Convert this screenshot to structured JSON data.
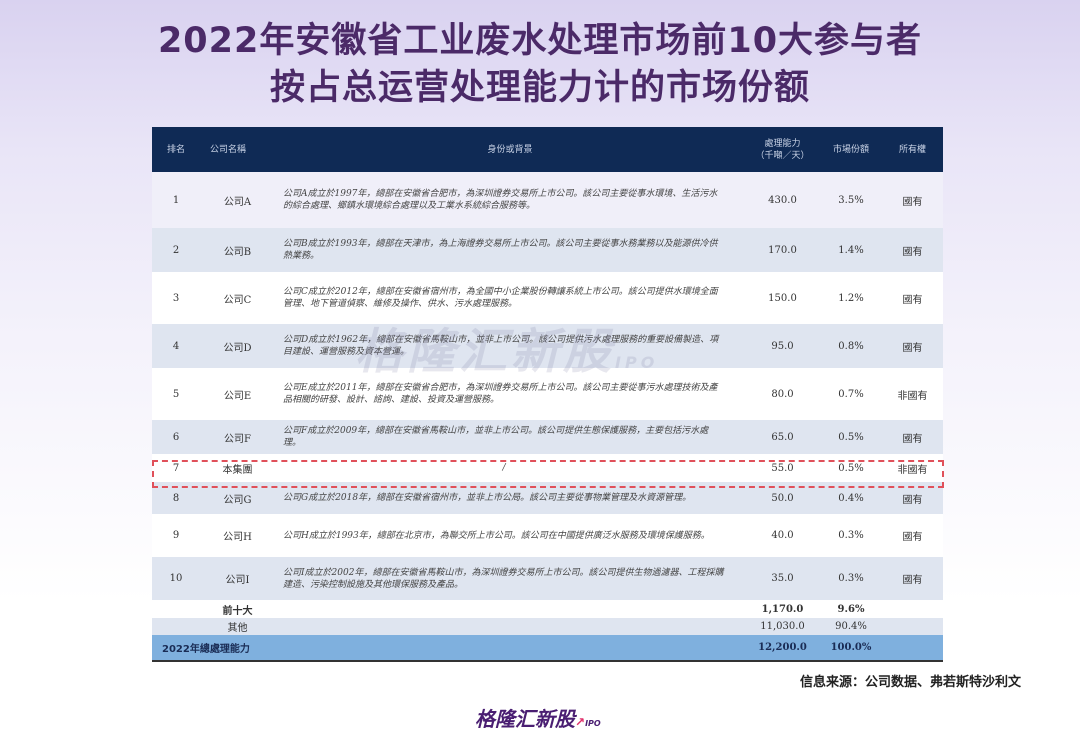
{
  "title": {
    "line1": "2022年安徽省工业废水处理市场前10大参与者",
    "line2": "按占总运营处理能力计的市场份额"
  },
  "table": {
    "headers": {
      "rank": "排名",
      "name": "公司名稱",
      "desc": "身份或背景",
      "capacity": "處理能力\n（千噸／天）",
      "share": "市場份額",
      "ownership": "所有權"
    },
    "rows": [
      {
        "rank": "1",
        "name": "公司A",
        "desc": "公司A成立於1997年，總部在安徽省合肥市，為深圳證券交易所上市公司。該公司主要從事水環境、生活污水的綜合處理、鄉鎮水環境綜合處理以及工業水系統綜合服務等。",
        "capacity": "430.0",
        "share": "3.5%",
        "ownership": "國有"
      },
      {
        "rank": "2",
        "name": "公司B",
        "desc": "公司B成立於1993年，總部在天津市，為上海證券交易所上市公司。該公司主要從事水務業務以及能源供冷供熱業務。",
        "capacity": "170.0",
        "share": "1.4%",
        "ownership": "國有"
      },
      {
        "rank": "3",
        "name": "公司C",
        "desc": "公司C成立於2012年，總部在安徽省宿州市，為全國中小企業股份轉讓系統上市公司。該公司提供水環境全面管理、地下管道偵察、維修及操作、供水、污水處理服務。",
        "capacity": "150.0",
        "share": "1.2%",
        "ownership": "國有"
      },
      {
        "rank": "4",
        "name": "公司D",
        "desc": "公司D成立於1962年，總部在安徽省馬鞍山市，並非上市公司。該公司提供污水處理服務的重要設備製造、項目建設、運營服務及資本營運。",
        "capacity": "95.0",
        "share": "0.8%",
        "ownership": "國有"
      },
      {
        "rank": "5",
        "name": "公司E",
        "desc": "公司E成立於2011年，總部在安徽省合肥市，為深圳證券交易所上市公司。該公司主要從事污水處理技術及產品相關的研發、設計、諮詢、建設、投資及運營服務。",
        "capacity": "80.0",
        "share": "0.7%",
        "ownership": "非國有"
      },
      {
        "rank": "6",
        "name": "公司F",
        "desc": "公司F成立於2009年，總部在安徽省馬鞍山市，並非上市公司。該公司提供生態保護服務，主要包括污水處理。",
        "capacity": "65.0",
        "share": "0.5%",
        "ownership": "國有"
      },
      {
        "rank": "7",
        "name": "本集團",
        "desc": "/",
        "capacity": "55.0",
        "share": "0.5%",
        "ownership": "非國有"
      },
      {
        "rank": "8",
        "name": "公司G",
        "desc": "公司G成立於2018年，總部在安徽省宿州市，並非上市公局。該公司主要從事物業管理及水資源管理。",
        "capacity": "50.0",
        "share": "0.4%",
        "ownership": "國有"
      },
      {
        "rank": "9",
        "name": "公司H",
        "desc": "公司H成立於1993年，總部在北京市，為聯交所上市公司。該公司在中國提供廣泛水服務及環境保護服務。",
        "capacity": "40.0",
        "share": "0.3%",
        "ownership": "國有"
      },
      {
        "rank": "10",
        "name": "公司I",
        "desc": "公司I成立於2002年，總部在安徽省馬鞍山市，為深圳證券交易所上市公司。該公司提供生物過濾器、工程採購建造、污染控制設施及其他環保服務及產品。",
        "capacity": "35.0",
        "share": "0.3%",
        "ownership": "國有"
      }
    ],
    "top10": {
      "label": "前十大",
      "capacity": "1,170.0",
      "share": "9.6%"
    },
    "others": {
      "label": "其他",
      "capacity": "11,030.0",
      "share": "90.4%"
    },
    "total": {
      "label": "2022年總處理能力",
      "capacity": "12,200.0",
      "share": "100.0%"
    },
    "highlight_color": "#e0505a"
  },
  "source": "信息来源：公司数据、弗若斯特沙利文",
  "watermark": {
    "text": "格隆汇新股",
    "sub": "IPO"
  },
  "logo": {
    "text": "格隆汇新股",
    "sub": "IPO"
  }
}
